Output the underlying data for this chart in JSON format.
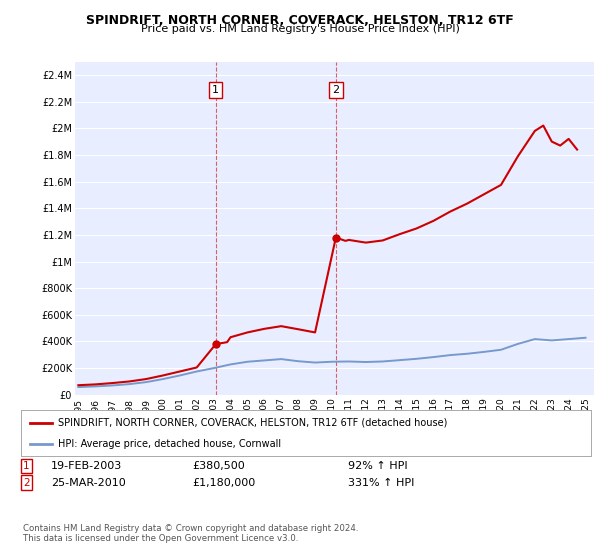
{
  "title": "SPINDRIFT, NORTH CORNER, COVERACK, HELSTON, TR12 6TF",
  "subtitle": "Price paid vs. HM Land Registry's House Price Index (HPI)",
  "ylim": [
    0,
    2500000
  ],
  "yticks": [
    0,
    200000,
    400000,
    600000,
    800000,
    1000000,
    1200000,
    1400000,
    1600000,
    1800000,
    2000000,
    2200000,
    2400000
  ],
  "ytick_labels": [
    "£0",
    "£200K",
    "£400K",
    "£600K",
    "£800K",
    "£1M",
    "£1.2M",
    "£1.4M",
    "£1.6M",
    "£1.8M",
    "£2M",
    "£2.2M",
    "£2.4M"
  ],
  "xlim_start": 1994.8,
  "xlim_end": 2025.5,
  "xticks": [
    1995,
    1996,
    1997,
    1998,
    1999,
    2000,
    2001,
    2002,
    2003,
    2004,
    2005,
    2006,
    2007,
    2008,
    2009,
    2010,
    2011,
    2012,
    2013,
    2014,
    2015,
    2016,
    2017,
    2018,
    2019,
    2020,
    2021,
    2022,
    2023,
    2024,
    2025
  ],
  "background_color": "#ffffff",
  "plot_bg_color": "#e8eeff",
  "grid_color": "#ffffff",
  "sale1_x": 2003.13,
  "sale1_y": 380500,
  "sale1_date": "19-FEB-2003",
  "sale1_price": "£380,500",
  "sale1_hpi": "92% ↑ HPI",
  "sale2_x": 2010.23,
  "sale2_y": 1180000,
  "sale2_date": "25-MAR-2010",
  "sale2_price": "£1,180,000",
  "sale2_hpi": "331% ↑ HPI",
  "property_line_color": "#cc0000",
  "hpi_line_color": "#7799cc",
  "legend_property_label": "SPINDRIFT, NORTH CORNER, COVERACK, HELSTON, TR12 6TF (detached house)",
  "legend_hpi_label": "HPI: Average price, detached house, Cornwall",
  "footnote": "Contains HM Land Registry data © Crown copyright and database right 2024.\nThis data is licensed under the Open Government Licence v3.0.",
  "hpi_data_x": [
    1995,
    1996,
    1997,
    1998,
    1999,
    2000,
    2001,
    2002,
    2003,
    2004,
    2005,
    2006,
    2007,
    2008,
    2009,
    2010,
    2011,
    2012,
    2013,
    2014,
    2015,
    2016,
    2017,
    2018,
    2019,
    2020,
    2021,
    2022,
    2023,
    2024,
    2025
  ],
  "hpi_data_y": [
    58000,
    63000,
    70000,
    80000,
    95000,
    118000,
    145000,
    175000,
    200000,
    228000,
    248000,
    258000,
    268000,
    252000,
    242000,
    248000,
    250000,
    246000,
    250000,
    260000,
    270000,
    283000,
    298000,
    308000,
    322000,
    338000,
    382000,
    418000,
    408000,
    418000,
    428000
  ],
  "property_data_x": [
    1995,
    1996,
    1997,
    1998,
    1999,
    2000,
    2001,
    2002,
    2003.13,
    2003.8,
    2004,
    2005,
    2006,
    2007,
    2008,
    2009,
    2010.23,
    2010.8,
    2011,
    2012,
    2013,
    2014,
    2015,
    2016,
    2017,
    2018,
    2019,
    2020,
    2021,
    2022,
    2022.5,
    2023,
    2023.5,
    2024,
    2024.5
  ],
  "property_data_y": [
    72000,
    78000,
    88000,
    100000,
    118000,
    145000,
    175000,
    205000,
    380500,
    395000,
    432000,
    468000,
    495000,
    515000,
    492000,
    468000,
    1180000,
    1155000,
    1162000,
    1142000,
    1158000,
    1205000,
    1248000,
    1305000,
    1375000,
    1435000,
    1505000,
    1575000,
    1790000,
    1980000,
    2020000,
    1900000,
    1870000,
    1920000,
    1840000
  ]
}
